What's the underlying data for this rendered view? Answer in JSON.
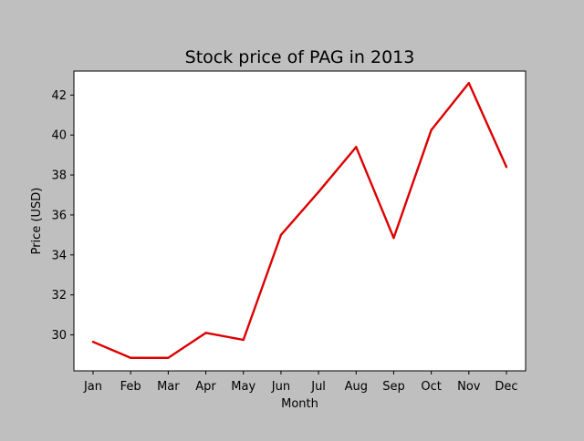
{
  "chart_data": {
    "type": "line",
    "title": "Stock price of PAG in 2013",
    "xlabel": "Month",
    "ylabel": "Price (USD)",
    "categories": [
      "Jan",
      "Feb",
      "Mar",
      "Apr",
      "May",
      "Jun",
      "Jul",
      "Aug",
      "Sep",
      "Oct",
      "Nov",
      "Dec"
    ],
    "series": [
      {
        "values": [
          29.65,
          28.85,
          28.85,
          30.1,
          29.75,
          35.0,
          37.15,
          39.4,
          34.85,
          40.25,
          42.6,
          38.4
        ],
        "color": "#dd0000"
      }
    ],
    "ylim": [
      28.2,
      43.2
    ],
    "yticks": [
      30,
      32,
      34,
      36,
      38,
      40,
      42
    ],
    "grid": false,
    "legend": "none"
  },
  "colors": {
    "figure_background": "#bfbfbf",
    "plot_background": "#ffffff",
    "line": "#dd0000"
  }
}
